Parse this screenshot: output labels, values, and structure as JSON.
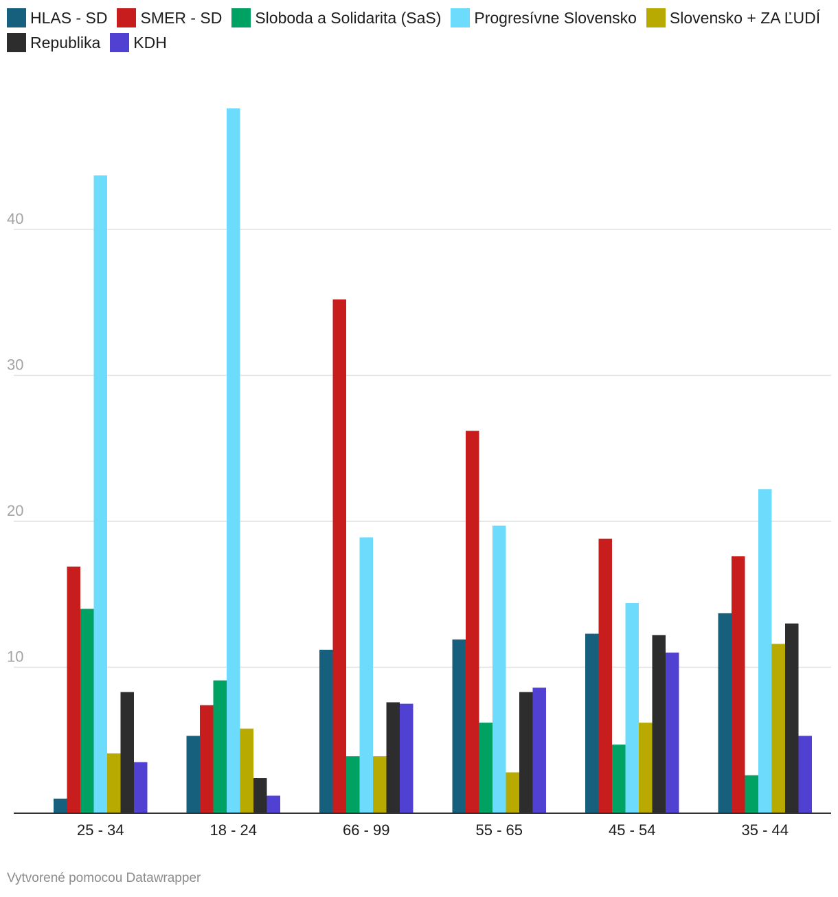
{
  "chart_data": {
    "type": "bar",
    "categories": [
      "25 - 34",
      "18 - 24",
      "66 - 99",
      "55 - 65",
      "45 - 54",
      "35 - 44"
    ],
    "series": [
      {
        "name": "HLAS - SD",
        "color": "#17607d",
        "values": [
          1.0,
          5.3,
          11.2,
          11.9,
          12.3,
          13.7
        ]
      },
      {
        "name": "SMER - SD",
        "color": "#c71e1d",
        "values": [
          16.9,
          7.4,
          35.2,
          26.2,
          18.8,
          17.6
        ]
      },
      {
        "name": "Sloboda a Solidarita (SaS)",
        "color": "#00a263",
        "values": [
          14.0,
          9.1,
          3.9,
          6.2,
          4.7,
          2.6
        ]
      },
      {
        "name": "Progresívne Slovensko",
        "color": "#6ddcfc",
        "values": [
          43.7,
          48.3,
          18.9,
          19.7,
          14.4,
          22.2
        ]
      },
      {
        "name": "Slovensko + ZA ĽUDÍ",
        "color": "#b8aa00",
        "values": [
          4.1,
          5.8,
          3.9,
          2.8,
          6.2,
          11.6
        ]
      },
      {
        "name": "Republika",
        "color": "#2d2d2d",
        "values": [
          8.3,
          2.4,
          7.6,
          8.3,
          12.2,
          13.0
        ]
      },
      {
        "name": "KDH",
        "color": "#5141d3",
        "values": [
          3.5,
          1.2,
          7.5,
          8.6,
          11.0,
          5.3
        ]
      }
    ],
    "yticks": [
      "10",
      "20",
      "30",
      "40"
    ],
    "ylim": [
      0,
      50
    ],
    "grid": true,
    "legend_position": "top"
  },
  "footer": {
    "credit": "Vytvorené pomocou Datawrapper"
  }
}
